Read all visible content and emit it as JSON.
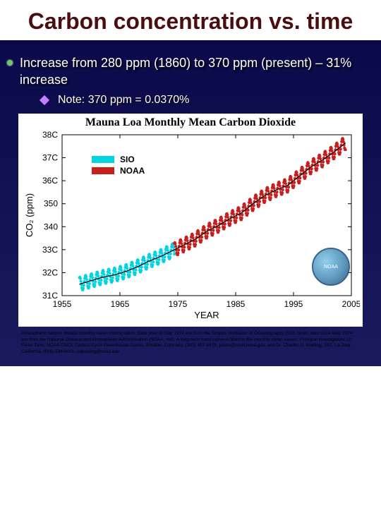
{
  "title": "Carbon concentration vs. time",
  "bullet_main": "Increase from 280 ppm (1860) to 370 ppm (present) – 31% increase",
  "bullet_sub": "Note:  370 ppm = 0.0370%",
  "chart": {
    "type": "line",
    "title": "Mauna Loa Monthly Mean Carbon Dioxide",
    "xlabel": "YEAR",
    "ylabel": "CO₂  (ppm)",
    "xlim": [
      1955,
      2005
    ],
    "ylim": [
      310,
      380
    ],
    "xticks": [
      1955,
      1965,
      1975,
      1985,
      1995,
      2005
    ],
    "yticks": [
      310,
      320,
      330,
      340,
      350,
      360,
      370,
      380
    ],
    "ytick_labels": [
      "31C",
      "32C",
      "33C",
      "340",
      "350",
      "36C",
      "37C",
      "38C"
    ],
    "background_color": "#ffffff",
    "grid": false,
    "legend_pos": "upper-left",
    "series": [
      {
        "name": "SIO",
        "color": "#00d4e0",
        "line_width": 1,
        "marker": "dot",
        "marker_size": 2,
        "years": [
          1958,
          1974.4
        ],
        "trend": [
          [
            1958,
            315
          ],
          [
            1960,
            316.5
          ],
          [
            1962,
            318
          ],
          [
            1964,
            319
          ],
          [
            1966,
            320.5
          ],
          [
            1968,
            322.5
          ],
          [
            1970,
            325
          ],
          [
            1972,
            327
          ],
          [
            1974.4,
            330
          ]
        ],
        "seasonal_amplitude": 3
      },
      {
        "name": "NOAA",
        "color": "#c81e1e",
        "line_width": 1,
        "marker": "dot",
        "marker_size": 2,
        "years": [
          1974.4,
          2004
        ],
        "trend": [
          [
            1974.4,
            330
          ],
          [
            1976,
            332
          ],
          [
            1978,
            334.5
          ],
          [
            1980,
            338
          ],
          [
            1982,
            340.5
          ],
          [
            1984,
            343.5
          ],
          [
            1986,
            346
          ],
          [
            1988,
            350
          ],
          [
            1990,
            353.5
          ],
          [
            1992,
            356
          ],
          [
            1994,
            358
          ],
          [
            1996,
            362
          ],
          [
            1998,
            366
          ],
          [
            2000,
            369
          ],
          [
            2002,
            372.5
          ],
          [
            2004,
            376.5
          ]
        ],
        "seasonal_amplitude": 3
      }
    ],
    "trendline_color": "#000000"
  },
  "noaa_label": "NOAA",
  "caption": "Atmospheric carbon dioxide monthly mean mixing ratios. Data prior to May 1974 are from the Scripps Institution of Oceanography (SIO, blue), data since May 1974 are from the National Oceanic and Atmospheric Administration (NOAA, red). A long-term trend curve is fitted to the monthly mean values. Principal investigators: Dr. Pieter Tans, NOAA CMDL Carbon Cycle Greenhouse Gases, Boulder, Colorado, (303) 497-6678, ptans@cmdl.noaa.gov, and Dr. Charles D. Keeling, SIO, La Jolla, California, (616) 534-6001, cdkeeling@ucsd.edu"
}
